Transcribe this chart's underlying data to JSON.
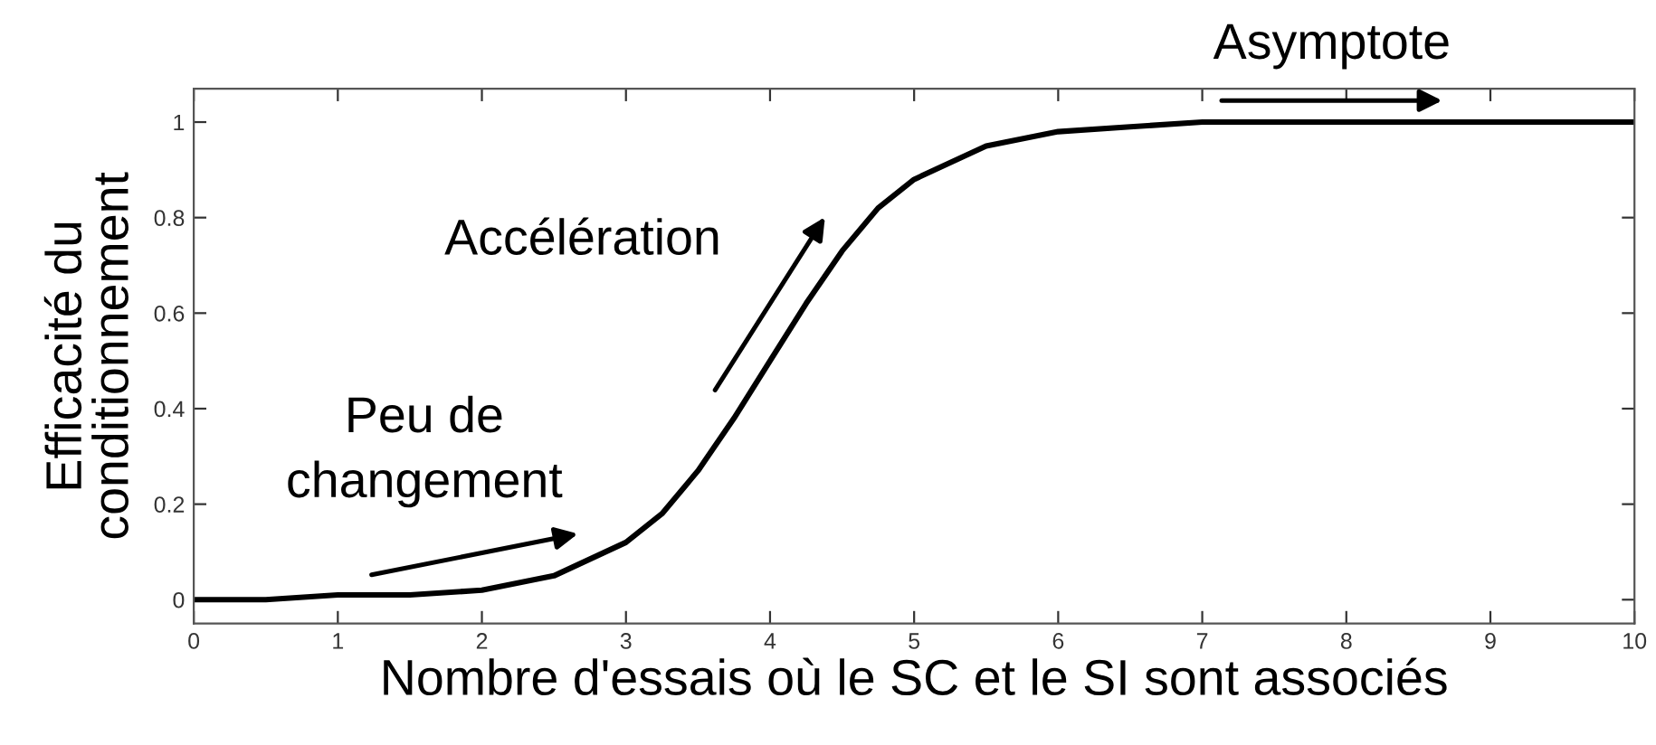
{
  "chart_data": {
    "type": "line",
    "xlabel": "Nombre d'essais où le SC et le SI sont associés",
    "ylabel": "Efficacité du\nconditionnement",
    "annotations": [
      "Peu de\nchangement",
      "Accélération",
      "Asymptote"
    ],
    "x": [
      0,
      0.5,
      1,
      1.5,
      2,
      2.5,
      3,
      3.25,
      3.5,
      3.75,
      4,
      4.25,
      4.5,
      4.75,
      5,
      5.5,
      6,
      6.5,
      7,
      8,
      9,
      10
    ],
    "series": [
      {
        "color": "#000000",
        "values": [
          0.0,
          0.0,
          0.01,
          0.01,
          0.02,
          0.05,
          0.12,
          0.18,
          0.27,
          0.38,
          0.5,
          0.62,
          0.73,
          0.82,
          0.88,
          0.95,
          0.98,
          0.99,
          1.0,
          1.0,
          1.0,
          1.0
        ]
      }
    ],
    "xlim": [
      0,
      10
    ],
    "ylim": [
      -0.05,
      1.07
    ],
    "xticks": [
      0,
      1,
      2,
      3,
      4,
      5,
      6,
      7,
      8,
      9,
      10
    ],
    "yticks": [
      0,
      0.2,
      0.4,
      0.6,
      0.8,
      1
    ],
    "grid": false,
    "legend": false,
    "marker": "none",
    "line_style": "solid"
  }
}
